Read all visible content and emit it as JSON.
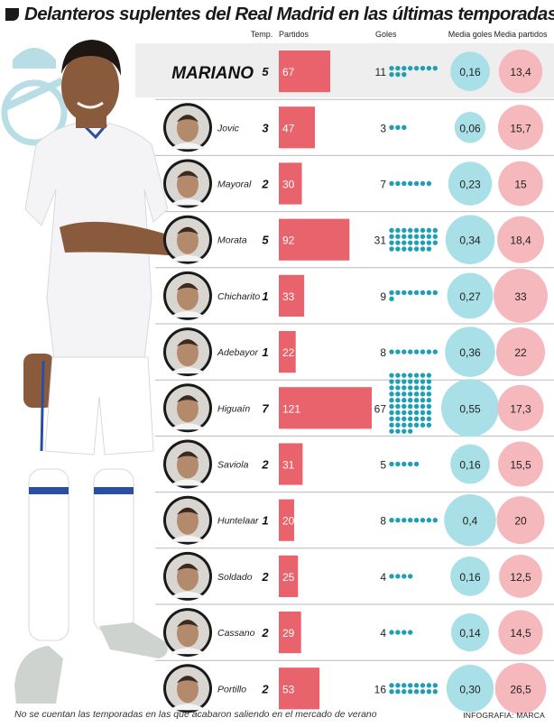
{
  "title": "Delanteros suplentes del Real Madrid en las últimas temporadas",
  "footnote": "No se cuentan las temporadas en las que acabaron saliendo en el mercado de verano",
  "credit": "INFOGRAFIA: MARCA",
  "chart_data": {
    "type": "table",
    "columns": {
      "temporadas": "Temp.",
      "partidos": "Partidos",
      "goles": "Goles",
      "media_goles": "Media goles",
      "media_partidos": "Media partidos"
    },
    "rows": [
      {
        "player": "MARIANO",
        "temporadas": 5,
        "partidos": 67,
        "goles": 11,
        "media_goles": "0,16",
        "media_partidos": "13,4",
        "highlight": true
      },
      {
        "player": "Jovic",
        "temporadas": 3,
        "partidos": 47,
        "goles": 3,
        "media_goles": "0,06",
        "media_partidos": "15,7"
      },
      {
        "player": "Mayoral",
        "temporadas": 2,
        "partidos": 30,
        "goles": 7,
        "media_goles": "0,23",
        "media_partidos": "15"
      },
      {
        "player": "Morata",
        "temporadas": 5,
        "partidos": 92,
        "goles": 31,
        "media_goles": "0,34",
        "media_partidos": "18,4"
      },
      {
        "player": "Chicharito",
        "temporadas": 1,
        "partidos": 33,
        "goles": 9,
        "media_goles": "0,27",
        "media_partidos": "33"
      },
      {
        "player": "Adebayor",
        "temporadas": 1,
        "partidos": 22,
        "goles": 8,
        "media_goles": "0,36",
        "media_partidos": "22"
      },
      {
        "player": "Higuaín",
        "temporadas": 7,
        "partidos": 121,
        "goles": 67,
        "media_goles": "0,55",
        "media_partidos": "17,3"
      },
      {
        "player": "Saviola",
        "temporadas": 2,
        "partidos": 31,
        "goles": 5,
        "media_goles": "0,16",
        "media_partidos": "15,5"
      },
      {
        "player": "Huntelaar",
        "temporadas": 1,
        "partidos": 20,
        "goles": 8,
        "media_goles": "0,4",
        "media_partidos": "20"
      },
      {
        "player": "Soldado",
        "temporadas": 2,
        "partidos": 25,
        "goles": 4,
        "media_goles": "0,16",
        "media_partidos": "12,5"
      },
      {
        "player": "Cassano",
        "temporadas": 2,
        "partidos": 29,
        "goles": 4,
        "media_goles": "0,14",
        "media_partidos": "14,5"
      },
      {
        "player": "Portillo",
        "temporadas": 2,
        "partidos": 53,
        "goles": 16,
        "media_goles": "0,30",
        "media_partidos": "26,5"
      }
    ]
  },
  "colors": {
    "bar": "#e8636b",
    "dot": "#1f9fb3",
    "media_goles_circle": "#a9dfe7",
    "media_partidos_circle": "#f4b8bd",
    "highlight_band": "#efeeee",
    "crest": "#b8dde4",
    "kit_white": "#f4f4f6",
    "kit_blue": "#2b4fa0",
    "skin": "#8a5a3c"
  },
  "icons": [
    "player-photo",
    "player-portrait",
    "real-madrid-crest",
    "title-mark-icon"
  ]
}
